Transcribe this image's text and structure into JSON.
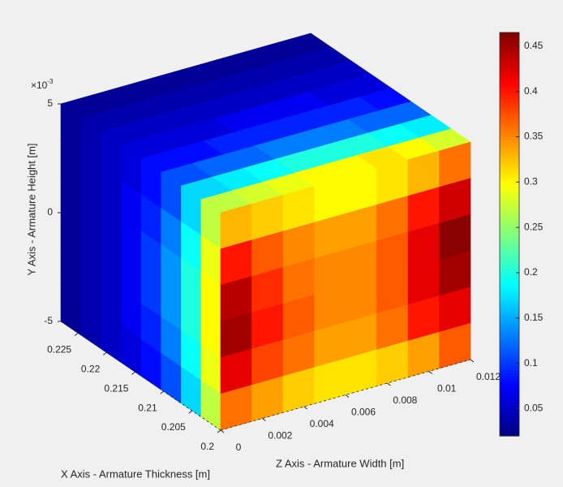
{
  "chart_data": {
    "type": "scatter3",
    "colormap": "jet",
    "xlabel": "X Axis - Armature Thickness [m]",
    "ylabel": "Y Axis - Armature Height [m]",
    "zlabel": "Z Axis - Armature Width [m]",
    "xlim": [
      0.2,
      0.228
    ],
    "ylim": [
      -0.005,
      0.005
    ],
    "zlim": [
      0,
      0.012
    ],
    "xticks": [
      0.2,
      0.205,
      0.21,
      0.215,
      0.22,
      0.225
    ],
    "yticks": [
      {
        "value": -0.005,
        "label": "-5"
      },
      {
        "value": 0,
        "label": "0"
      },
      {
        "value": 0.005,
        "label": "5"
      }
    ],
    "y_multiplier": {
      "base": "×10",
      "exponent": "-3"
    },
    "zticks": [
      0,
      0.002,
      0.004,
      0.006,
      0.008,
      0.01,
      0.012
    ],
    "clim": [
      0.02,
      0.465
    ],
    "cticks": [
      0.05,
      0.1,
      0.15,
      0.2,
      0.25,
      0.3,
      0.35,
      0.4,
      0.45
    ],
    "top_face": [
      [
        0.27,
        0.28,
        0.29,
        0.3,
        0.3,
        0.31,
        0.3,
        0.28
      ],
      [
        0.17,
        0.18,
        0.19,
        0.2,
        0.2,
        0.2,
        0.19,
        0.18
      ],
      [
        0.11,
        0.12,
        0.12,
        0.13,
        0.13,
        0.13,
        0.12,
        0.12
      ],
      [
        0.08,
        0.08,
        0.09,
        0.09,
        0.09,
        0.09,
        0.09,
        0.08
      ],
      [
        0.06,
        0.06,
        0.06,
        0.07,
        0.07,
        0.07,
        0.06,
        0.06
      ],
      [
        0.05,
        0.05,
        0.05,
        0.05,
        0.05,
        0.05,
        0.05,
        0.05
      ],
      [
        0.04,
        0.04,
        0.04,
        0.04,
        0.04,
        0.04,
        0.04,
        0.04
      ],
      [
        0.03,
        0.03,
        0.03,
        0.03,
        0.03,
        0.03,
        0.03,
        0.03
      ]
    ],
    "side_face": [
      [
        0.27,
        0.17,
        0.11,
        0.08,
        0.06,
        0.05,
        0.04,
        0.03
      ],
      [
        0.29,
        0.19,
        0.13,
        0.09,
        0.07,
        0.05,
        0.04,
        0.03
      ],
      [
        0.3,
        0.2,
        0.14,
        0.1,
        0.07,
        0.05,
        0.04,
        0.03
      ],
      [
        0.3,
        0.2,
        0.14,
        0.1,
        0.07,
        0.05,
        0.04,
        0.03
      ],
      [
        0.29,
        0.19,
        0.13,
        0.09,
        0.07,
        0.05,
        0.04,
        0.03
      ],
      [
        0.27,
        0.17,
        0.11,
        0.08,
        0.06,
        0.05,
        0.04,
        0.03
      ]
    ],
    "front_face": [
      [
        0.33,
        0.32,
        0.31,
        0.3,
        0.3,
        0.31,
        0.33,
        0.36
      ],
      [
        0.4,
        0.37,
        0.35,
        0.34,
        0.34,
        0.36,
        0.4,
        0.43
      ],
      [
        0.44,
        0.39,
        0.36,
        0.35,
        0.35,
        0.37,
        0.42,
        0.46
      ],
      [
        0.45,
        0.4,
        0.37,
        0.35,
        0.35,
        0.37,
        0.42,
        0.45
      ],
      [
        0.42,
        0.38,
        0.36,
        0.34,
        0.34,
        0.36,
        0.4,
        0.42
      ],
      [
        0.36,
        0.34,
        0.32,
        0.31,
        0.31,
        0.32,
        0.34,
        0.37
      ]
    ]
  }
}
